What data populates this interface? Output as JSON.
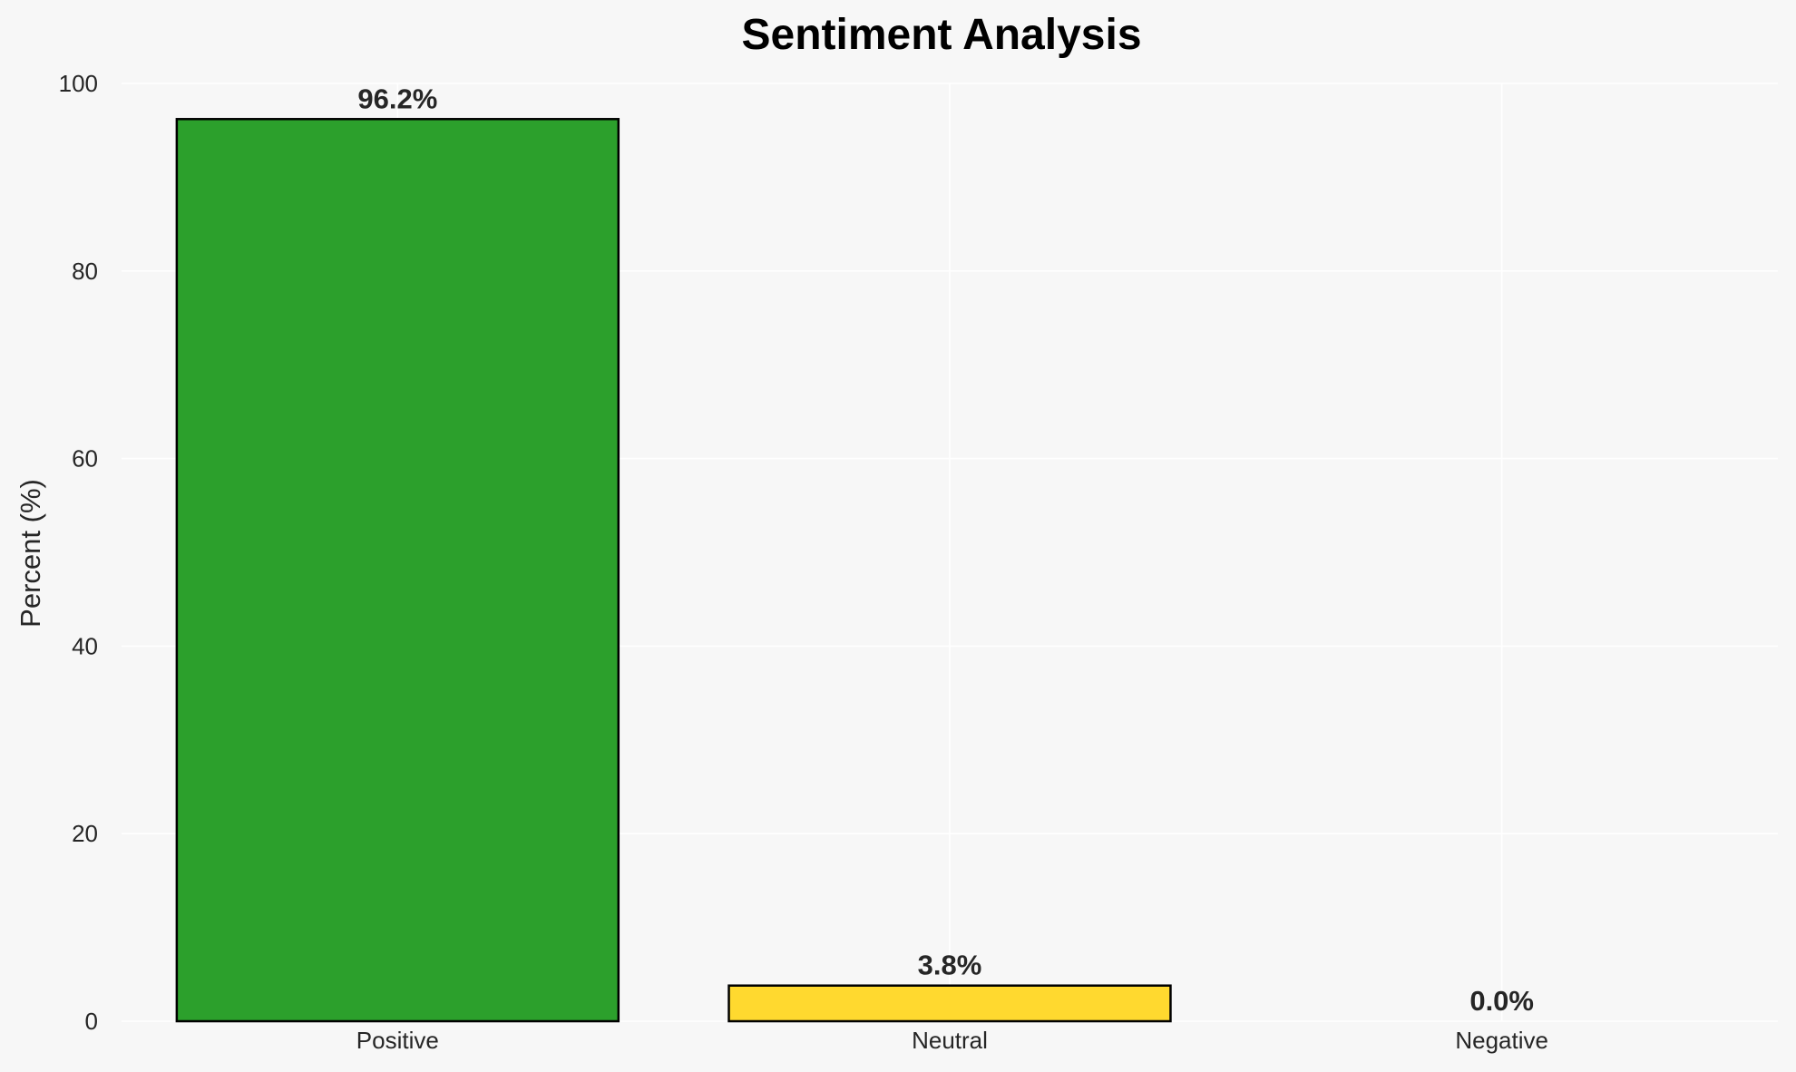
{
  "chart_data": {
    "type": "bar",
    "title": "Sentiment Analysis",
    "xlabel": "",
    "ylabel": "Percent (%)",
    "categories": [
      "Positive",
      "Neutral",
      "Negative"
    ],
    "values": [
      96.2,
      3.8,
      0.0
    ],
    "data_labels": [
      "96.2%",
      "3.8%",
      "0.0%"
    ],
    "colors": [
      "#2ca02c",
      "#ffd92f",
      "#d62728"
    ],
    "ylim": [
      0,
      100
    ],
    "yticks": [
      0,
      20,
      40,
      60,
      80,
      100
    ],
    "ytick_labels": [
      "0",
      "20",
      "40",
      "60",
      "80",
      "100"
    ],
    "grid": true,
    "background": "#f7f7f7"
  }
}
